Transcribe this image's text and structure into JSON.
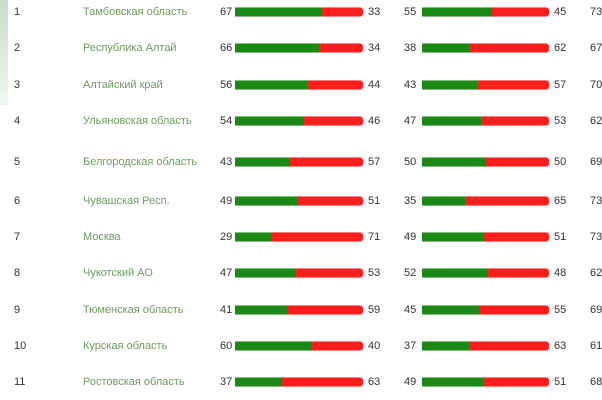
{
  "colors": {
    "yes": "#1a8a14",
    "no": "#ff1e1e",
    "region_text": "#6d9c5f"
  },
  "chart_data": {
    "type": "bar",
    "orientation": "horizontal-stacked-100",
    "categories": [
      "Тамбовская область",
      "Республика Алтай",
      "Алтайский край",
      "Ульяновская область",
      "Белгородская область",
      "Чувашская Респ.",
      "Москва",
      "Чукотский АО",
      "Тюменская область",
      "Курская область",
      "Ростовская область"
    ],
    "ranks": [
      "1",
      "2",
      "3",
      "4",
      "5",
      "6",
      "7",
      "8",
      "9",
      "10",
      "11"
    ],
    "bar_groups": [
      {
        "series": [
          {
            "name": "green",
            "values": [
              67,
              66,
              56,
              54,
              43,
              49,
              29,
              47,
              41,
              60,
              37
            ]
          },
          {
            "name": "red",
            "values": [
              33,
              34,
              44,
              46,
              57,
              51,
              71,
              53,
              59,
              40,
              63
            ]
          }
        ]
      },
      {
        "series": [
          {
            "name": "green",
            "values": [
              55,
              38,
              43,
              47,
              50,
              35,
              49,
              52,
              45,
              37,
              49
            ]
          },
          {
            "name": "red",
            "values": [
              45,
              62,
              57,
              53,
              50,
              65,
              51,
              48,
              55,
              63,
              51
            ]
          }
        ]
      }
    ],
    "third_column_values_partial": [
      "73",
      "67",
      "70",
      "62",
      "69",
      "73",
      "73",
      "62",
      "69",
      "61",
      "68"
    ]
  }
}
